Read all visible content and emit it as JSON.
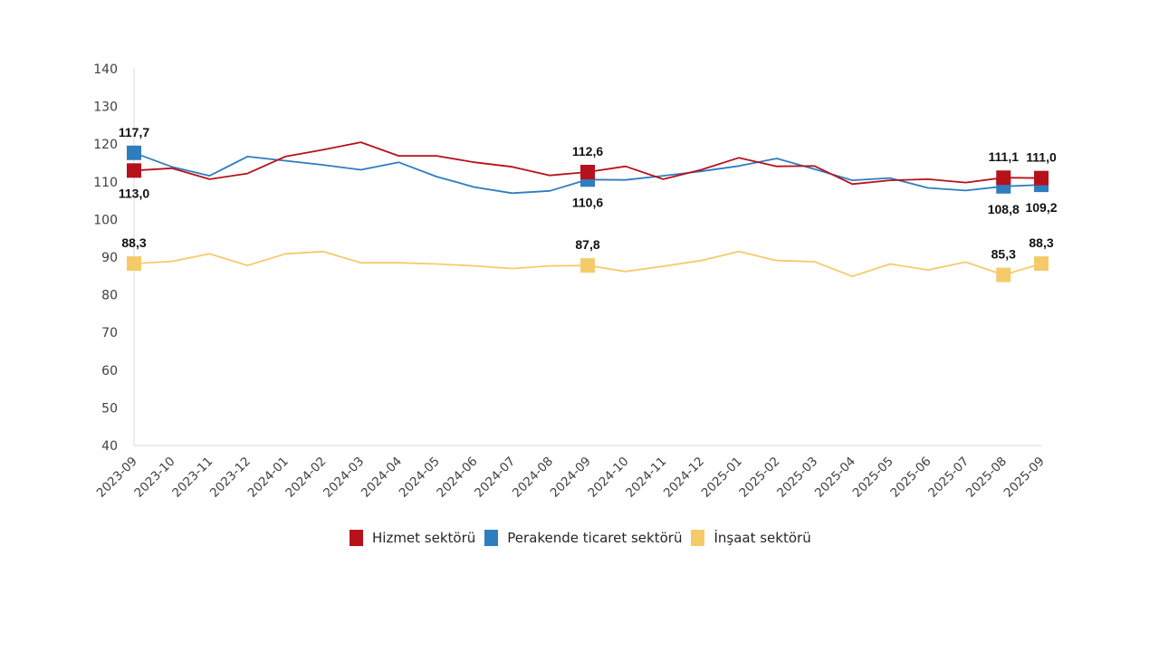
{
  "chart_data": {
    "type": "line",
    "title": "",
    "xlabel": "",
    "ylabel": "",
    "ylim": [
      40,
      140
    ],
    "yticks": [
      40,
      50,
      60,
      70,
      80,
      90,
      100,
      110,
      120,
      130,
      140
    ],
    "grid": false,
    "legend_position": "bottom",
    "categories": [
      "2023-09",
      "2023-10",
      "2023-11",
      "2023-12",
      "2024-01",
      "2024-02",
      "2024-03",
      "2024-04",
      "2024-05",
      "2024-06",
      "2024-07",
      "2024-08",
      "2024-09",
      "2024-10",
      "2024-11",
      "2024-12",
      "2025-01",
      "2025-02",
      "2025-03",
      "2025-04",
      "2025-05",
      "2025-06",
      "2025-07",
      "2025-08",
      "2025-09"
    ],
    "series": [
      {
        "name": "Hizmet sektörü",
        "color": "#B5121B",
        "values": [
          113.0,
          113.6,
          110.7,
          112.2,
          116.7,
          118.5,
          120.5,
          116.9,
          116.9,
          115.2,
          114.0,
          111.7,
          112.6,
          114.1,
          110.7,
          113.2,
          116.4,
          114.1,
          114.2,
          109.4,
          110.4,
          110.7,
          109.8,
          111.1,
          111.0
        ],
        "labels": [
          {
            "index": 0,
            "text": "113,0",
            "position": "below"
          },
          {
            "index": 12,
            "text": "112,6",
            "position": "above"
          },
          {
            "index": 23,
            "text": "111,1",
            "position": "above"
          },
          {
            "index": 24,
            "text": "111,0",
            "position": "above"
          }
        ]
      },
      {
        "name": "Perakende ticaret sektörü",
        "color": "#2E7DBF",
        "values": [
          117.7,
          114.0,
          111.6,
          116.7,
          115.6,
          114.5,
          113.2,
          115.2,
          111.4,
          108.6,
          107.0,
          107.6,
          110.6,
          110.5,
          111.6,
          112.8,
          114.2,
          116.2,
          113.4,
          110.4,
          111.0,
          108.4,
          107.7,
          108.8,
          109.2
        ],
        "labels": [
          {
            "index": 0,
            "text": "117,7",
            "position": "above"
          },
          {
            "index": 12,
            "text": "110,6",
            "position": "below"
          },
          {
            "index": 23,
            "text": "108,8",
            "position": "below"
          },
          {
            "index": 24,
            "text": "109,2",
            "position": "below"
          }
        ]
      },
      {
        "name": "İnşaat sektörü",
        "color": "#F5CB6A",
        "values": [
          88.3,
          88.9,
          90.9,
          87.8,
          90.9,
          91.5,
          88.5,
          88.5,
          88.2,
          87.7,
          87.0,
          87.7,
          87.8,
          86.2,
          87.6,
          89.1,
          91.5,
          89.1,
          88.8,
          84.9,
          88.2,
          86.6,
          88.7,
          85.3,
          88.3
        ],
        "labels": [
          {
            "index": 0,
            "text": "88,3",
            "position": "above"
          },
          {
            "index": 12,
            "text": "87,8",
            "position": "above"
          },
          {
            "index": 23,
            "text": "85,3",
            "position": "above"
          },
          {
            "index": 24,
            "text": "88,3",
            "position": "above"
          }
        ]
      }
    ],
    "marker_indices": [
      0,
      12,
      23,
      24
    ]
  }
}
